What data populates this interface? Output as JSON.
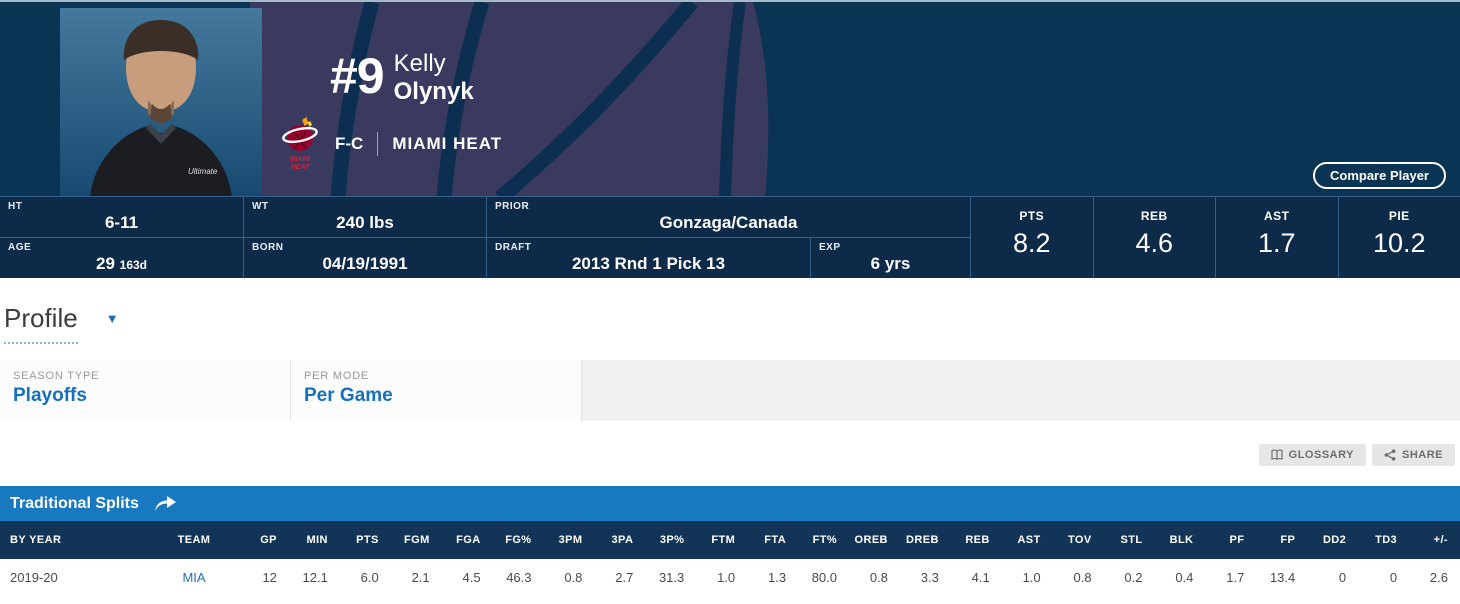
{
  "player": {
    "jersey_number": "#9",
    "first_name": "Kelly",
    "last_name": "Olynyk",
    "position": "F-C",
    "team": "MIAMI HEAT",
    "jersey_text": "Ultimate",
    "logo_wordmark_line1": "MIAMI",
    "logo_wordmark_line2": "HEAT"
  },
  "compare_button": "Compare Player",
  "bio": {
    "ht": {
      "label": "HT",
      "value": "6-11"
    },
    "wt": {
      "label": "WT",
      "value": "240 lbs"
    },
    "prior": {
      "label": "PRIOR",
      "value": "Gonzaga/Canada"
    },
    "age": {
      "label": "AGE",
      "value": "29",
      "days": "163d"
    },
    "born": {
      "label": "BORN",
      "value": "04/19/1991"
    },
    "draft": {
      "label": "DRAFT",
      "value": "2013 Rnd 1 Pick 13"
    },
    "exp": {
      "label": "EXP",
      "value": "6 yrs"
    }
  },
  "summary": [
    {
      "label": "PTS",
      "value": "8.2"
    },
    {
      "label": "REB",
      "value": "4.6"
    },
    {
      "label": "AST",
      "value": "1.7"
    },
    {
      "label": "PIE",
      "value": "10.2"
    }
  ],
  "profile": {
    "title": "Profile"
  },
  "filters": {
    "season_type": {
      "label": "SEASON TYPE",
      "value": "Playoffs"
    },
    "per_mode": {
      "label": "PER MODE",
      "value": "Per Game"
    }
  },
  "actions": {
    "glossary": "GLOSSARY",
    "share": "SHARE"
  },
  "splits_table": {
    "title": "Traditional Splits",
    "columns": [
      "BY YEAR",
      "TEAM",
      "GP",
      "MIN",
      "PTS",
      "FGM",
      "FGA",
      "FG%",
      "3PM",
      "3PA",
      "3P%",
      "FTM",
      "FTA",
      "FT%",
      "OREB",
      "DREB",
      "REB",
      "AST",
      "TOV",
      "STL",
      "BLK",
      "PF",
      "FP",
      "DD2",
      "TD3",
      "+/-"
    ],
    "rows": [
      [
        "2019-20",
        "MIA",
        "12",
        "12.1",
        "6.0",
        "2.1",
        "4.5",
        "46.3",
        "0.8",
        "2.7",
        "31.3",
        "1.0",
        "1.3",
        "80.0",
        "0.8",
        "3.3",
        "4.1",
        "1.0",
        "0.8",
        "0.2",
        "0.4",
        "1.7",
        "13.4",
        "0",
        "0",
        "2.6"
      ]
    ]
  },
  "colors": {
    "header_navy": "#0a3453",
    "bio_navy": "#0d2a49",
    "accent_blue": "#1878c0",
    "table_header_navy": "#123457",
    "link_blue": "#1d6fba",
    "heat_red": "#98002e",
    "watermark_purple": "#3a3a60"
  }
}
